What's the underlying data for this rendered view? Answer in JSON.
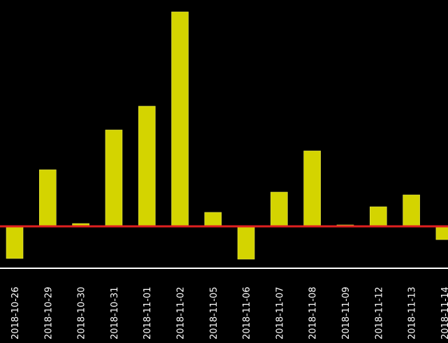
{
  "chart_data": {
    "type": "bar",
    "title": "",
    "xlabel": "",
    "ylabel": "",
    "categories": [
      "2018-10-26",
      "2018-10-29",
      "2018-10-30",
      "2018-10-31",
      "2018-11-01",
      "2018-11-02",
      "2018-11-05",
      "2018-11-06",
      "2018-11-07",
      "2018-11-08",
      "2018-11-09",
      "2018-11-12",
      "2018-11-13",
      "2018-11-14"
    ],
    "values": [
      -46,
      81,
      4,
      138,
      172,
      307,
      20,
      -47,
      49,
      108,
      2,
      28,
      45,
      -19
    ],
    "ylim": [
      -50,
      310
    ],
    "grid": false,
    "colors": {
      "background": "#000000",
      "bar": "#d4d400",
      "bar_edge": "#e8e850",
      "zero_line": "#e02020",
      "axis_line": "#ffffff",
      "text": "#ffffff"
    }
  }
}
